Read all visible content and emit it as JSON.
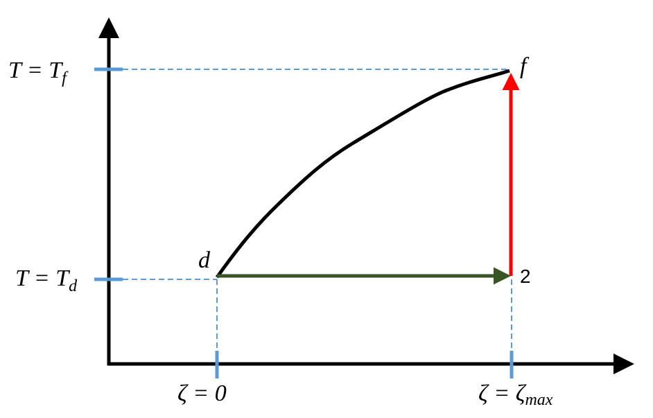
{
  "y_labels": [
    {
      "text": "T = T",
      "sub": "f"
    },
    {
      "text": "T = T",
      "sub": "d"
    }
  ],
  "x_labels": [
    {
      "text": "ζ = 0"
    },
    {
      "text": "ζ = ζ",
      "sub": "max"
    }
  ],
  "points": [
    "d",
    "f",
    "2"
  ]
}
